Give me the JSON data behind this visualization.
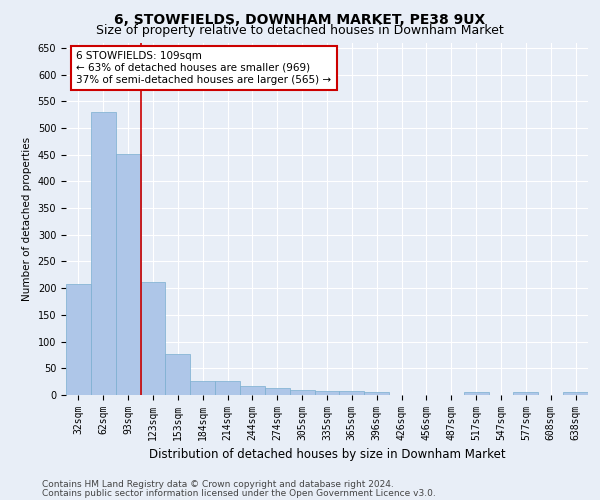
{
  "title": "6, STOWFIELDS, DOWNHAM MARKET, PE38 9UX",
  "subtitle": "Size of property relative to detached houses in Downham Market",
  "xlabel": "Distribution of detached houses by size in Downham Market",
  "ylabel": "Number of detached properties",
  "footer_line1": "Contains HM Land Registry data © Crown copyright and database right 2024.",
  "footer_line2": "Contains public sector information licensed under the Open Government Licence v3.0.",
  "categories": [
    "32sqm",
    "62sqm",
    "93sqm",
    "123sqm",
    "153sqm",
    "184sqm",
    "214sqm",
    "244sqm",
    "274sqm",
    "305sqm",
    "335sqm",
    "365sqm",
    "396sqm",
    "426sqm",
    "456sqm",
    "487sqm",
    "517sqm",
    "547sqm",
    "577sqm",
    "608sqm",
    "638sqm"
  ],
  "values": [
    207,
    530,
    452,
    212,
    76,
    27,
    27,
    16,
    13,
    10,
    7,
    7,
    5,
    0,
    0,
    0,
    5,
    0,
    5,
    0,
    5
  ],
  "bar_color": "#aec6e8",
  "bar_edge_color": "#7aaed0",
  "vline_x": 2.5,
  "vline_color": "#cc0000",
  "annotation_text_line1": "6 STOWFIELDS: 109sqm",
  "annotation_text_line2": "← 63% of detached houses are smaller (969)",
  "annotation_text_line3": "37% of semi-detached houses are larger (565) →",
  "annotation_box_color": "#ffffff",
  "annotation_edge_color": "#cc0000",
  "ylim": [
    0,
    660
  ],
  "yticks": [
    0,
    50,
    100,
    150,
    200,
    250,
    300,
    350,
    400,
    450,
    500,
    550,
    600,
    650
  ],
  "background_color": "#e8eef7",
  "plot_background_color": "#e8eef7",
  "grid_color": "#ffffff",
  "title_fontsize": 10,
  "subtitle_fontsize": 9,
  "tick_fontsize": 7,
  "ylabel_fontsize": 7.5,
  "xlabel_fontsize": 8.5,
  "annotation_fontsize": 7.5,
  "footer_fontsize": 6.5
}
